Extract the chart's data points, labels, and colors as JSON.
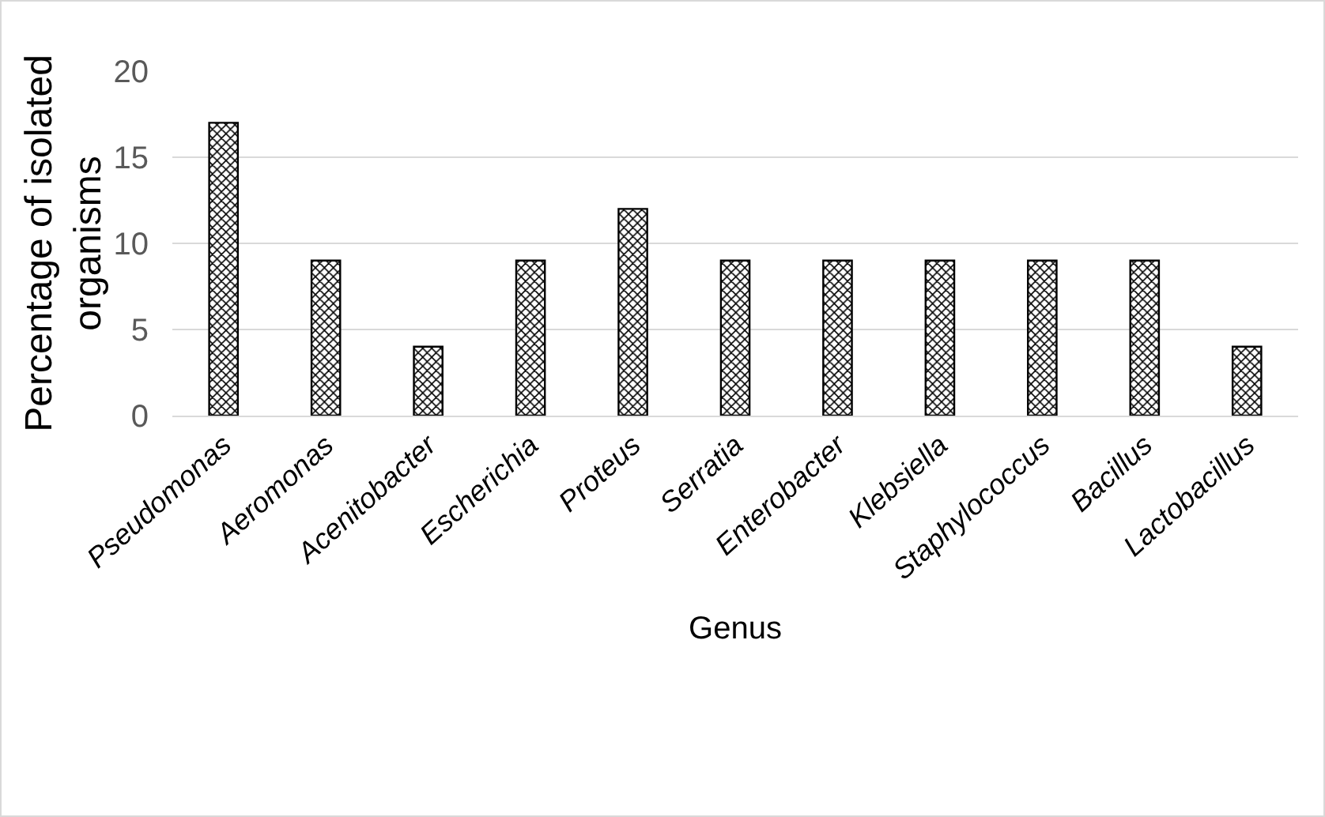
{
  "chart_data": {
    "type": "bar",
    "xlabel": "Genus",
    "ylabel": "Percentage of isolated organisms",
    "categories": [
      "Pseudomonas",
      "Aeromonas",
      "Acenitobacter",
      "Escherichia",
      "Proteus",
      "Serratia",
      "Enterobacter",
      "Klebsiella",
      "Staphylococcus",
      "Bacillus",
      "Lactobacillus"
    ],
    "values": [
      17,
      9,
      4,
      9,
      12,
      9,
      9,
      9,
      9,
      9,
      4
    ],
    "color": "#000000",
    "ylim": [
      0,
      20
    ],
    "yticks": [
      0,
      5,
      10,
      15,
      20
    ],
    "grid": "y",
    "legend": false
  }
}
